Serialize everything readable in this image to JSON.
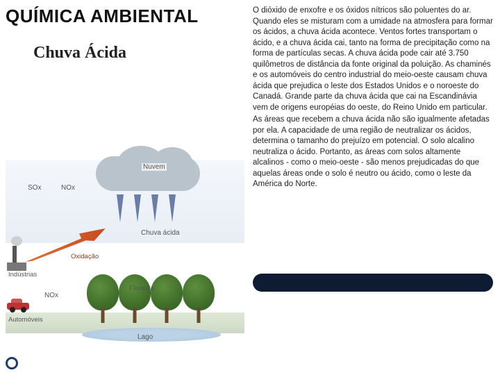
{
  "title": "QUÍMICA AMBIENTAL",
  "subtitle": "Chuva Ácida",
  "paragraph1": "O dióxido de enxofre e os óxidos nítricos são poluentes do ar. Quando eles se misturam com a umidade na atmosfera para formar os ácidos, a chuva ácida acontece. Ventos fortes transportam o ácido, e a chuva ácida cai, tanto na forma de precipitação como na forma de partículas secas. A chuva ácida pode cair até 3.750 quilômetros de distância da fonte original da poluição. As chaminés e os automóveis do centro industrial do meio-oeste causam chuva ácida que prejudica o leste dos Estados Unidos e o noroeste do Canadá. Grande parte da chuva ácida que cai na Escandinávia vem de origens européias do oeste, do Reino Unido em particular.",
  "paragraph2": "As áreas que recebem a chuva ácida não são igualmente afetadas por ela. A capacidade de uma região de neutralizar os ácidos, determina o tamanho do prejuízo em potencial. O solo alcalino neutraliza o ácido. Portanto, as áreas com solos altamente alcalinos - como o meio-oeste - são menos prejudicadas do que aquelas áreas onde o solo é neutro ou ácido, como o leste da América do Norte.",
  "diagram": {
    "labels": {
      "nuvem": "Nuvem",
      "sox": "SOx",
      "nox_top": "NOx",
      "chuva": "Chuva ácida",
      "oxidacao": "Oxidação",
      "industrias": "Indústrias",
      "floresta": "Floresta",
      "nox_car": "NOx",
      "automoveis": "Automóveis",
      "lago": "Lago"
    },
    "colors": {
      "cloud": "#b9c3cc",
      "rain_arrow": "#6a7da8",
      "oxid_arrow_start": "#e0733a",
      "oxid_arrow_end": "#c84a1e",
      "tree_light": "#5d8f3e",
      "tree_dark": "#2e5a1e",
      "factory": "#555555",
      "car": "#b33333",
      "lake": "#bcd3e6",
      "dark_bar": "#0d1b33",
      "bullet_ring": "#1e3a6e"
    }
  }
}
